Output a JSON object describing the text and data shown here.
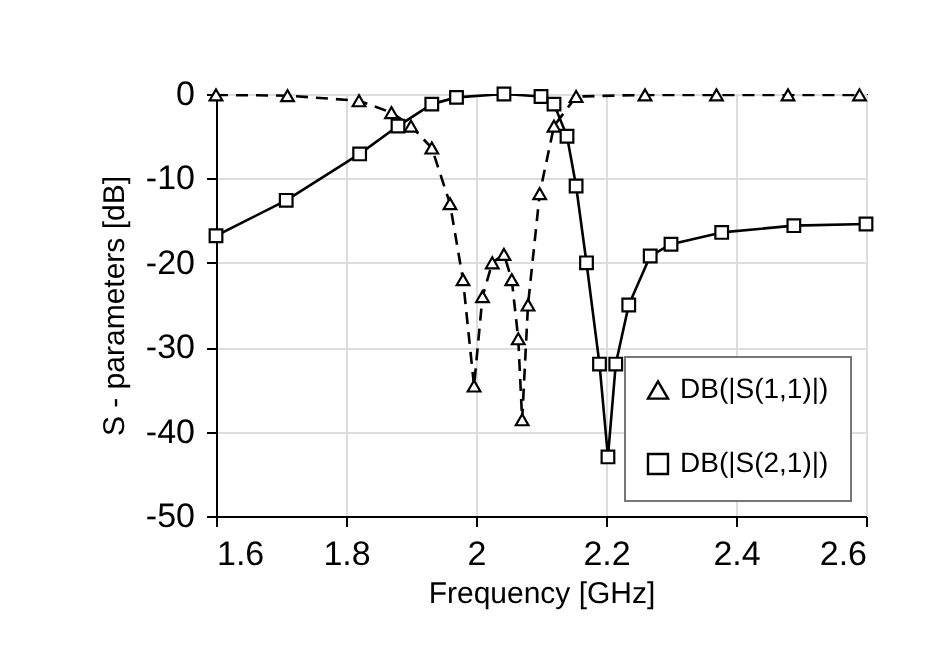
{
  "chart_data": {
    "type": "line",
    "xlabel": "Frequency [GHz]",
    "ylabel": "S - parameters [dB]",
    "xlim": [
      1.6,
      2.6
    ],
    "ylim": [
      -50,
      0
    ],
    "xticks": [
      1.6,
      1.8,
      2,
      2.2,
      2.4,
      2.6
    ],
    "yticks": [
      -50,
      -40,
      -30,
      -20,
      -10,
      0
    ],
    "grid": true,
    "legend": "bottom right",
    "series": [
      {
        "name": "DB(|S(1,1)|)",
        "color": "#000000",
        "marker": "triangle",
        "line_style": "dashed",
        "x": [
          1.6,
          1.71,
          1.82,
          1.87,
          1.9,
          1.932,
          1.96,
          1.98,
          1.997,
          2.01,
          2.025,
          2.043,
          2.055,
          2.065,
          2.071,
          2.08,
          2.098,
          2.12,
          2.154,
          2.26,
          2.37,
          2.48,
          2.59
        ],
        "values": [
          -0.1,
          -0.2,
          -0.8,
          -2.2,
          -3.8,
          -6.4,
          -13,
          -22,
          -34.6,
          -24,
          -20,
          -19,
          -22,
          -29,
          -38.6,
          -25,
          -11.8,
          -3.8,
          -0.3,
          -0.1,
          -0.1,
          -0.1,
          -0.1
        ]
      },
      {
        "name": "DB(|S(2,1)|)",
        "color": "#000000",
        "marker": "square",
        "line_style": "solid",
        "x": [
          1.6,
          1.708,
          1.821,
          1.88,
          1.932,
          1.97,
          2.043,
          2.1,
          2.12,
          2.14,
          2.154,
          2.17,
          2.19,
          2.203,
          2.215,
          2.235,
          2.268,
          2.3,
          2.378,
          2.489,
          2.6
        ],
        "values": [
          -16.8,
          -12.6,
          -7.1,
          -3.8,
          -1.2,
          -0.4,
          0,
          -0.3,
          -1.2,
          -5,
          -10.9,
          -20,
          -32,
          -43,
          -32,
          -25,
          -19.2,
          -17.8,
          -16.4,
          -15.6,
          -15.4
        ]
      }
    ]
  }
}
